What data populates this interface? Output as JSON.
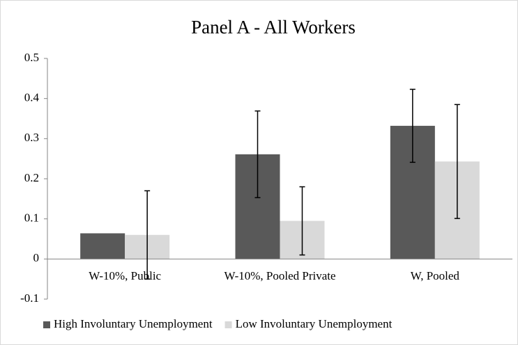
{
  "chart_data": {
    "type": "bar",
    "title": "Panel A - All Workers",
    "categories": [
      "W-10%, Public",
      "W-10%, Pooled Private",
      "W, Pooled"
    ],
    "series": [
      {
        "name": "High Involuntary Unemployment",
        "color": "#595959",
        "values": [
          0.064,
          0.261,
          0.332
        ],
        "errors": [
          null,
          0.108,
          0.091
        ]
      },
      {
        "name": "Low Involuntary Unemployment",
        "color": "#d9d9d9",
        "values": [
          0.06,
          0.095,
          0.243
        ],
        "errors": [
          0.11,
          0.085,
          0.142
        ]
      }
    ],
    "ylim": [
      -0.1,
      0.5
    ],
    "yticks": [
      -0.1,
      0,
      0.1,
      0.2,
      0.3,
      0.4,
      0.5
    ],
    "grid": false,
    "legend": "bottom"
  }
}
